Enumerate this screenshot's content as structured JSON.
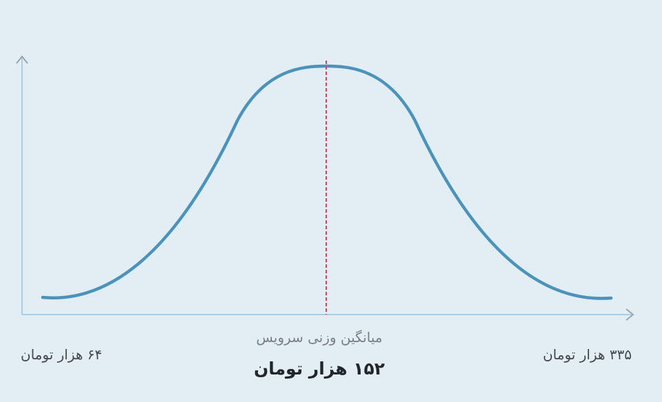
{
  "distribution": {
    "mean_caption": "میانگین وزنی سرویس",
    "mean_value": "۱۵۲ هزار تومان",
    "min_label": "۶۴ هزار تومان",
    "max_label": "۳۳۵ هزار تومان"
  }
}
